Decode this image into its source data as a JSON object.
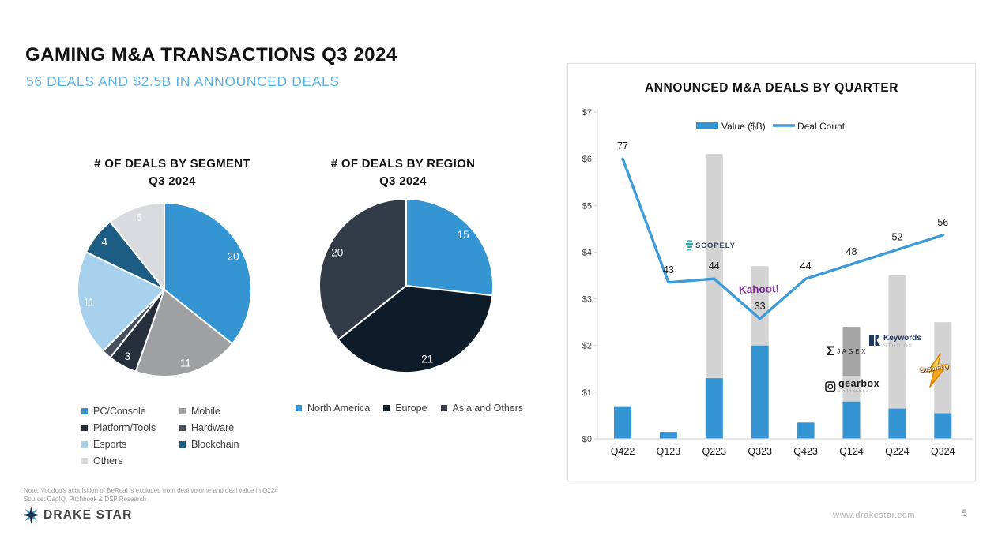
{
  "slide": {
    "title": "GAMING M&A TRANSACTIONS Q3 2024",
    "subtitle": "56 DEALS AND $2.5B IN ANNOUNCED DEALS",
    "footnote": "Note: Voodoo's acquisition of BeReal is excluded from deal volume and deal value in Q224",
    "source": "Source: CapIQ, Pitchbook & DSP Research",
    "brand": "DRAKE STAR",
    "website": "www.drakestar.com",
    "page_number": "5"
  },
  "colors": {
    "accent_blue": "#3594d2",
    "subtitle_blue": "#5eb3e4",
    "line_blue": "#3e9bd9",
    "bar_gray": "#d3d3d3",
    "bar_dark_gray": "#a5a5a5"
  },
  "chart_data": [
    {
      "type": "pie",
      "title": "# OF DEALS BY SEGMENT",
      "subtitle": "Q3 2024",
      "total": 56,
      "slices": [
        {
          "label": "PC/Console",
          "value": 20,
          "color": "#3594d2",
          "data_label": "20"
        },
        {
          "label": "Mobile",
          "value": 11,
          "color": "#9fa0a2",
          "data_label": "11"
        },
        {
          "label": "Platform/Tools",
          "value": 3,
          "color": "#262f3b",
          "data_label": "3"
        },
        {
          "label": "Hardware",
          "value": 1,
          "color": "#47505c",
          "data_label": ""
        },
        {
          "label": "Esports",
          "value": 11,
          "color": "#a7d1ec",
          "data_label": "11"
        },
        {
          "label": "Blockchain",
          "value": 4,
          "color": "#1d5d84",
          "data_label": "4"
        },
        {
          "label": "Others",
          "value": 6,
          "color": "#d9dbde",
          "data_label": "6"
        }
      ],
      "legend_left_column": [
        "PC/Console",
        "Platform/Tools",
        "Esports",
        "Others"
      ],
      "legend_right_column": [
        "Mobile",
        "Hardware",
        "Blockchain"
      ]
    },
    {
      "type": "pie",
      "title": "# OF DEALS BY REGION",
      "subtitle": "Q3 2024",
      "total": 56,
      "slices": [
        {
          "label": "North America",
          "value": 15,
          "color": "#3594d2",
          "data_label": "15"
        },
        {
          "label": "Europe",
          "value": 21,
          "color": "#0e1b28",
          "data_label": "21"
        },
        {
          "label": "Asia and Others",
          "value": 20,
          "color": "#343b48",
          "data_label": "20"
        }
      ]
    },
    {
      "type": "bar+line",
      "title": "ANNOUNCED M&A DEALS BY QUARTER",
      "categories": [
        "Q422",
        "Q123",
        "Q223",
        "Q323",
        "Q423",
        "Q124",
        "Q224",
        "Q324"
      ],
      "y_axis": {
        "labels": [
          "$0",
          "$1",
          "$2",
          "$3",
          "$4",
          "$5",
          "$6",
          "$7"
        ],
        "min": 0,
        "max": 7
      },
      "legend": [
        {
          "label": "Value ($B)",
          "swatch": "bar"
        },
        {
          "label": "Deal Count",
          "swatch": "line"
        }
      ],
      "series": [
        {
          "name": "Value ($B)",
          "type": "bar",
          "values": [
            0.7,
            0.15,
            1.3,
            2.0,
            0.35,
            0.8,
            0.65,
            0.55
          ]
        },
        {
          "name": "Deal Count",
          "type": "line",
          "values": [
            77,
            43,
            44,
            33,
            44,
            48,
            52,
            56
          ]
        }
      ],
      "bars": [
        {
          "category": "Q422",
          "value_bn": 0.7
        },
        {
          "category": "Q123",
          "value_bn": 0.15
        },
        {
          "category": "Q223",
          "value_bn": 1.3,
          "gray_top": 6.1
        },
        {
          "category": "Q323",
          "value_bn": 2.0,
          "gray_top": 3.7
        },
        {
          "category": "Q423",
          "value_bn": 0.35
        },
        {
          "category": "Q124",
          "value_bn": 0.8,
          "gray_top": 1.35,
          "dark_gray_top": 2.4
        },
        {
          "category": "Q224",
          "value_bn": 0.65,
          "gray_top": 3.5
        },
        {
          "category": "Q324",
          "value_bn": 0.55,
          "gray_top": 2.5
        }
      ],
      "deal_count_labels": [
        "77",
        "43",
        "44",
        "33",
        "44",
        "48",
        "52",
        "56"
      ],
      "logos": [
        {
          "name": "Scopely",
          "text": "SCOPELY"
        },
        {
          "name": "Kahoot!",
          "text": "Kahoot!"
        },
        {
          "name": "Jagex",
          "text": "JAGEX",
          "monogram": "Ʃ"
        },
        {
          "name": "Keywords Studios",
          "text": "Keywords",
          "subtext": "STUDIOS"
        },
        {
          "name": "Gearbox Software",
          "text": "gearbox",
          "subtext": "software"
        },
        {
          "name": "SuperPlay",
          "text": "SuperPlay"
        }
      ]
    }
  ]
}
